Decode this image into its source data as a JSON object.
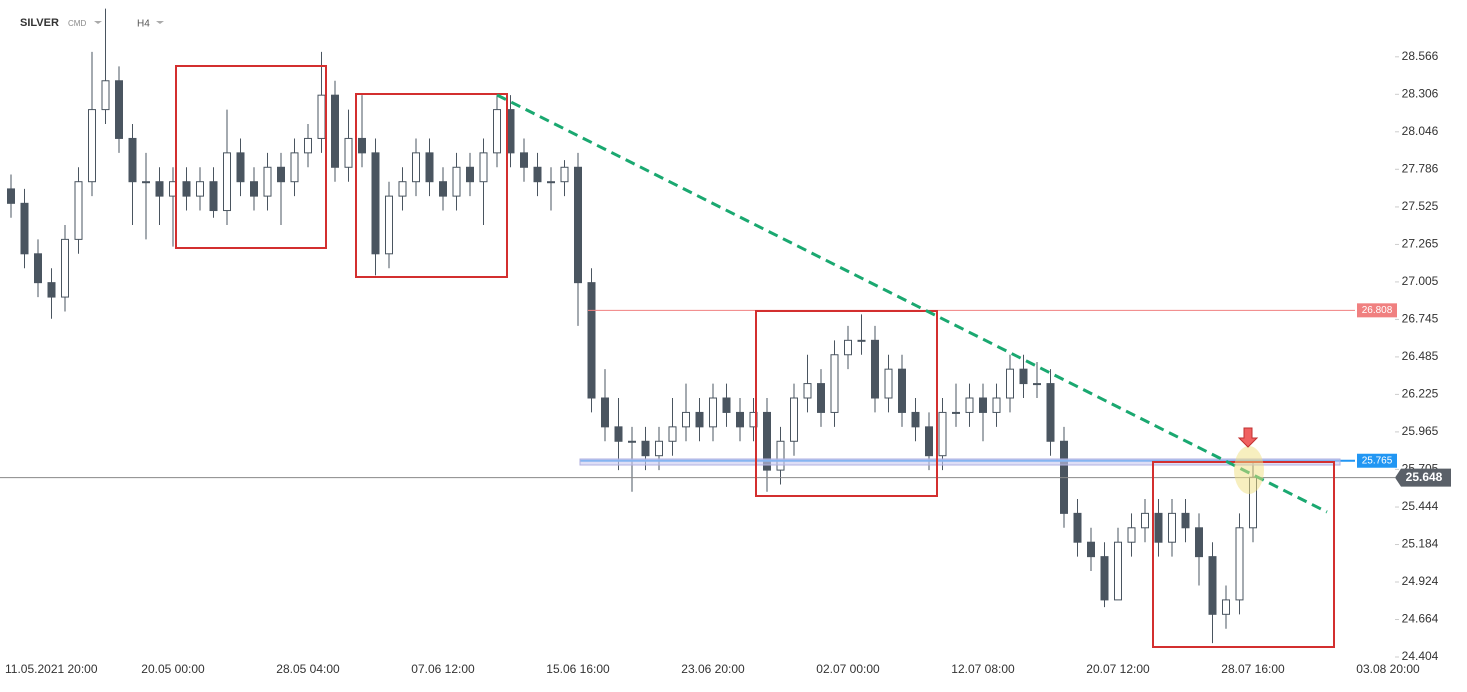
{
  "header": {
    "symbol": "SILVER",
    "market": "CMD",
    "interval": "H4"
  },
  "chart_data": {
    "type": "candlestick",
    "categories": [
      null,
      null,
      "11.05.2021 20:00",
      null,
      null,
      null,
      null,
      null,
      null,
      null,
      null,
      null,
      "20.05 00:00",
      null,
      null,
      null,
      null,
      null,
      null,
      null,
      null,
      null,
      "28.05 04:00",
      null,
      null,
      null,
      null,
      null,
      null,
      null,
      null,
      null,
      "07.06 12:00",
      null,
      null,
      null,
      null,
      null,
      null,
      null,
      null,
      null,
      "15.06 16:00",
      null,
      null,
      null,
      null,
      null,
      null,
      null,
      null,
      null,
      "23.06 20:00",
      null,
      null,
      null,
      null,
      null,
      null,
      null,
      null,
      null,
      "02.07 00:00",
      null,
      null,
      null,
      null,
      null,
      null,
      null,
      null,
      null,
      "12.07 08:00",
      null,
      null,
      null,
      null,
      null,
      null,
      null,
      null,
      null,
      "20.07 12:00",
      null,
      null,
      null,
      null,
      null,
      null,
      null,
      null,
      null,
      "28.07 16:00",
      null,
      null,
      null,
      null,
      null,
      null,
      null,
      null,
      null,
      "03.08 20:00"
    ],
    "open": [
      27.65,
      27.55,
      27.2,
      27.0,
      26.9,
      27.3,
      27.7,
      28.2,
      28.4,
      28.0,
      27.7,
      27.7,
      27.6,
      27.7,
      27.6,
      27.7,
      27.5,
      27.9,
      27.7,
      27.6,
      27.8,
      27.7,
      27.9,
      28.0,
      28.3,
      27.8,
      28.0,
      27.9,
      27.2,
      27.6,
      27.7,
      27.9,
      27.7,
      27.6,
      27.8,
      27.7,
      27.9,
      28.2,
      27.9,
      27.8,
      27.7,
      27.7,
      27.8,
      27.0,
      26.2,
      26.0,
      25.9,
      25.9,
      25.8,
      25.9,
      26.0,
      26.1,
      26.0,
      26.2,
      26.1,
      26.0,
      26.1,
      25.7,
      25.9,
      26.2,
      26.3,
      26.1,
      26.5,
      26.6,
      26.6,
      26.2,
      26.4,
      26.1,
      26.0,
      25.8,
      26.1,
      26.1,
      26.2,
      26.1,
      26.2,
      26.4,
      26.3,
      26.3,
      25.9,
      25.4,
      25.2,
      25.1,
      24.8,
      25.2,
      25.3,
      25.4,
      25.2,
      25.4,
      25.3,
      25.1,
      24.7,
      24.8,
      25.3,
      null,
      null,
      null,
      null,
      null,
      null,
      null,
      null,
      null,
      null
    ],
    "high": [
      27.75,
      27.65,
      27.3,
      27.1,
      27.4,
      27.8,
      28.6,
      28.9,
      28.5,
      28.1,
      27.9,
      27.8,
      27.8,
      27.8,
      27.8,
      27.8,
      28.2,
      28.0,
      27.8,
      27.9,
      27.9,
      28.0,
      28.1,
      28.6,
      28.4,
      28.2,
      28.3,
      28.0,
      27.7,
      27.8,
      28.0,
      28.0,
      27.8,
      27.9,
      27.9,
      28.0,
      28.3,
      28.3,
      28.0,
      27.9,
      27.8,
      27.85,
      27.9,
      27.1,
      26.4,
      26.2,
      26.0,
      26.0,
      26.0,
      26.2,
      26.3,
      26.2,
      26.3,
      26.3,
      26.2,
      26.2,
      26.2,
      26.0,
      26.3,
      26.5,
      26.4,
      26.6,
      26.7,
      26.78,
      26.7,
      26.5,
      26.5,
      26.2,
      26.1,
      26.2,
      26.3,
      26.3,
      26.3,
      26.3,
      26.5,
      26.5,
      26.45,
      26.4,
      26.0,
      25.5,
      25.3,
      25.2,
      25.3,
      25.4,
      25.5,
      25.5,
      25.5,
      25.5,
      25.4,
      25.2,
      24.9,
      25.4,
      25.76,
      null,
      null,
      null,
      null,
      null,
      null,
      null,
      null,
      null,
      null
    ],
    "low": [
      27.45,
      27.1,
      26.9,
      26.75,
      26.8,
      27.2,
      27.6,
      28.1,
      27.9,
      27.4,
      27.3,
      27.4,
      27.25,
      27.5,
      27.5,
      27.45,
      27.4,
      27.6,
      27.5,
      27.5,
      27.4,
      27.6,
      27.8,
      27.9,
      27.7,
      27.7,
      27.8,
      27.05,
      27.1,
      27.5,
      27.6,
      27.6,
      27.5,
      27.5,
      27.6,
      27.4,
      27.8,
      27.8,
      27.7,
      27.6,
      27.5,
      27.6,
      26.7,
      26.1,
      25.9,
      25.7,
      25.55,
      25.7,
      25.7,
      25.8,
      25.9,
      25.9,
      25.9,
      26.0,
      25.9,
      25.9,
      25.55,
      25.6,
      25.8,
      26.1,
      26.0,
      26.0,
      26.4,
      26.5,
      26.1,
      26.1,
      26.0,
      25.9,
      25.7,
      25.7,
      26.0,
      26.0,
      25.9,
      26.0,
      26.1,
      26.2,
      26.2,
      25.8,
      25.3,
      25.1,
      25.0,
      24.75,
      24.8,
      25.1,
      25.2,
      25.1,
      25.1,
      25.2,
      24.9,
      24.5,
      24.6,
      24.7,
      25.2,
      null,
      null,
      null,
      null,
      null,
      null,
      null,
      null,
      null,
      null
    ],
    "close": [
      27.55,
      27.2,
      27.0,
      26.9,
      27.3,
      27.7,
      28.2,
      28.4,
      28.0,
      27.7,
      27.7,
      27.6,
      27.7,
      27.6,
      27.7,
      27.5,
      27.9,
      27.7,
      27.6,
      27.8,
      27.7,
      27.9,
      28.0,
      28.3,
      27.8,
      28.0,
      27.9,
      27.2,
      27.6,
      27.7,
      27.9,
      27.7,
      27.6,
      27.8,
      27.7,
      27.9,
      28.2,
      27.9,
      27.8,
      27.7,
      27.7,
      27.8,
      27.0,
      26.2,
      26.0,
      25.9,
      25.9,
      25.8,
      25.9,
      26.0,
      26.1,
      26.0,
      26.2,
      26.1,
      26.0,
      26.1,
      25.7,
      25.9,
      26.2,
      26.3,
      26.1,
      26.5,
      26.6,
      26.6,
      26.2,
      26.4,
      26.1,
      26.0,
      25.8,
      26.1,
      26.1,
      26.2,
      26.1,
      26.2,
      26.4,
      26.3,
      26.3,
      25.9,
      25.4,
      25.2,
      25.1,
      24.8,
      25.2,
      25.3,
      25.4,
      25.2,
      25.4,
      25.3,
      25.1,
      24.7,
      24.8,
      25.3,
      25.65,
      null,
      null,
      null,
      null,
      null,
      null,
      null,
      null,
      null,
      null
    ],
    "up_color": "#ffffff",
    "down_color": "#4a5560",
    "wick_color": "#4a5560",
    "ylim": [
      24.3,
      28.96
    ],
    "yticks": [
      28.566,
      28.306,
      28.046,
      27.786,
      27.525,
      27.265,
      27.005,
      26.745,
      26.485,
      26.225,
      25.965,
      25.705,
      25.444,
      25.184,
      24.924,
      24.664,
      24.404
    ],
    "levels": [
      {
        "value": 26.808,
        "color": "#f08080"
      },
      {
        "value": 25.765,
        "color": "#2196f3"
      }
    ],
    "last_price": {
      "value": 25.648,
      "color": "#5a6068"
    },
    "grid": false
  }
}
